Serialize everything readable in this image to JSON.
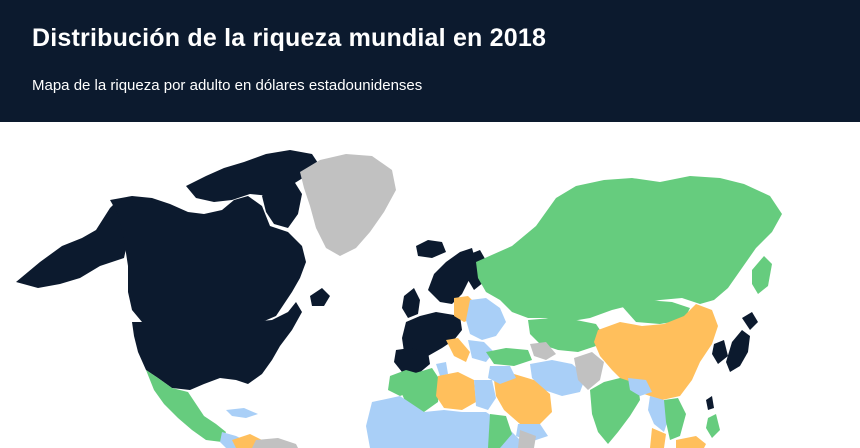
{
  "header": {
    "title": "Distribución de la riqueza mundial en 2018",
    "subtitle": "Mapa de la riqueza por adulto en dólares estadounidenses"
  },
  "map": {
    "type": "choropleth",
    "colors": {
      "highest": "#0c1a2e",
      "high": "#ffbf5c",
      "medium": "#a9cff7",
      "low": "#66cc7e",
      "no_data": "#c1c1c1",
      "ocean": "#ffffff"
    },
    "regions": [
      {
        "name": "Canada",
        "tier": "highest"
      },
      {
        "name": "United States",
        "tier": "highest"
      },
      {
        "name": "Alaska",
        "tier": "highest"
      },
      {
        "name": "Greenland",
        "tier": "no_data"
      },
      {
        "name": "Iceland",
        "tier": "highest"
      },
      {
        "name": "Scandinavia",
        "tier": "highest"
      },
      {
        "name": "Western Europe",
        "tier": "highest"
      },
      {
        "name": "Poland",
        "tier": "high"
      },
      {
        "name": "Eastern Europe",
        "tier": "medium"
      },
      {
        "name": "Russia",
        "tier": "low"
      },
      {
        "name": "Kazakhstan",
        "tier": "low"
      },
      {
        "name": "China",
        "tier": "high"
      },
      {
        "name": "Mongolia",
        "tier": "low"
      },
      {
        "name": "Japan",
        "tier": "highest"
      },
      {
        "name": "Korea",
        "tier": "highest"
      },
      {
        "name": "India",
        "tier": "low"
      },
      {
        "name": "Iran",
        "tier": "medium"
      },
      {
        "name": "Saudi Arabia",
        "tier": "high"
      },
      {
        "name": "Libya",
        "tier": "high"
      },
      {
        "name": "Algeria",
        "tier": "low"
      },
      {
        "name": "North Africa",
        "tier": "medium"
      },
      {
        "name": "Mexico",
        "tier": "low"
      },
      {
        "name": "Southeast Asia",
        "tier": "medium"
      },
      {
        "name": "Vietnam",
        "tier": "low"
      },
      {
        "name": "Pakistan",
        "tier": "no_data"
      }
    ]
  }
}
